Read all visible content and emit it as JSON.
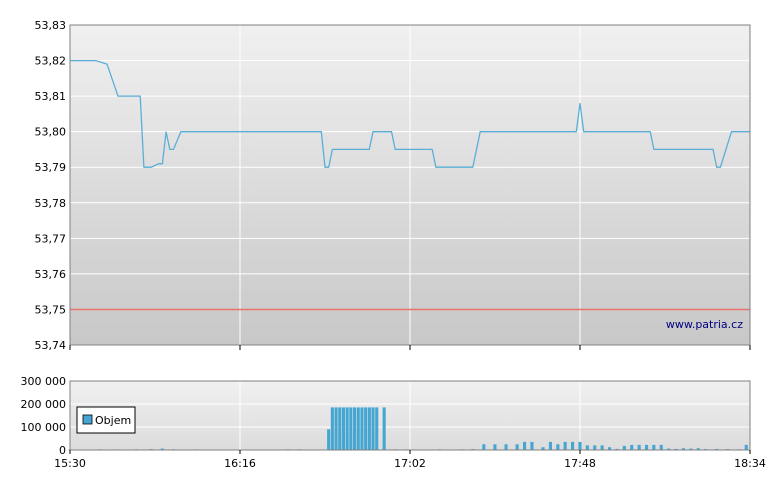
{
  "chart_data": [
    {
      "type": "line",
      "title": "",
      "xlabel": "",
      "ylabel": "",
      "x_ticks": [
        "15:30",
        "16:16",
        "17:02",
        "17:48",
        "18:34"
      ],
      "y_ticks": [
        "53,74",
        "53,75",
        "53,76",
        "53,77",
        "53,78",
        "53,79",
        "53,80",
        "53,81",
        "53,82",
        "53,83"
      ],
      "ylim": [
        53.74,
        53.83
      ],
      "xlim": [
        "15:30",
        "18:34"
      ],
      "grid": true,
      "reference_line": {
        "value": 53.75,
        "color": "#e8746c"
      },
      "series": [
        {
          "color": "#5aafd8",
          "points": [
            [
              "15:30",
              53.82
            ],
            [
              "15:37",
              53.82
            ],
            [
              "15:40",
              53.819
            ],
            [
              "15:43",
              53.81
            ],
            [
              "15:49",
              53.81
            ],
            [
              "15:50",
              53.79
            ],
            [
              "15:52",
              53.79
            ],
            [
              "15:54",
              53.791
            ],
            [
              "15:55",
              53.791
            ],
            [
              "15:56",
              53.8
            ],
            [
              "15:57",
              53.795
            ],
            [
              "15:58",
              53.795
            ],
            [
              "16:00",
              53.8
            ],
            [
              "16:38",
              53.8
            ],
            [
              "16:39",
              53.79
            ],
            [
              "16:40",
              53.79
            ],
            [
              "16:41",
              53.795
            ],
            [
              "16:51",
              53.795
            ],
            [
              "16:52",
              53.8
            ],
            [
              "16:57",
              53.8
            ],
            [
              "16:58",
              53.795
            ],
            [
              "17:08",
              53.795
            ],
            [
              "17:09",
              53.79
            ],
            [
              "17:19",
              53.79
            ],
            [
              "17:21",
              53.8
            ],
            [
              "17:30",
              53.8
            ],
            [
              "17:31",
              53.8
            ],
            [
              "17:47",
              53.8
            ],
            [
              "17:48",
              53.808
            ],
            [
              "17:49",
              53.8
            ],
            [
              "18:07",
              53.8
            ],
            [
              "18:08",
              53.795
            ],
            [
              "18:24",
              53.795
            ],
            [
              "18:25",
              53.79
            ],
            [
              "18:26",
              53.79
            ],
            [
              "18:29",
              53.8
            ],
            [
              "18:34",
              53.8
            ]
          ]
        }
      ]
    },
    {
      "type": "bar",
      "title": "",
      "xlabel": "",
      "ylabel": "",
      "y_ticks": [
        "0",
        "100 000",
        "200 000",
        "300 000"
      ],
      "ylim": [
        0,
        300000
      ],
      "grid": true,
      "legend": {
        "label": "Objem",
        "position": "left",
        "color": "#45a6d2"
      },
      "series": [
        {
          "name": "Objem",
          "color": "#45a6d2",
          "bars": [
            [
              "15:30",
              2000
            ],
            [
              "15:34",
              1500
            ],
            [
              "15:38",
              3000
            ],
            [
              "15:42",
              2500
            ],
            [
              "15:45",
              2000
            ],
            [
              "15:48",
              3000
            ],
            [
              "15:52",
              4000
            ],
            [
              "15:55",
              6000
            ],
            [
              "15:58",
              3000
            ],
            [
              "16:01",
              2000
            ],
            [
              "16:04",
              2500
            ],
            [
              "16:07",
              2000
            ],
            [
              "16:10",
              1500
            ],
            [
              "16:13",
              2000
            ],
            [
              "16:17",
              1500
            ],
            [
              "16:21",
              2000
            ],
            [
              "16:25",
              2000
            ],
            [
              "16:29",
              3000
            ],
            [
              "16:32",
              3000
            ],
            [
              "16:35",
              2000
            ],
            [
              "16:40",
              90000
            ],
            [
              "16:41",
              185000
            ],
            [
              "16:42",
              185000
            ],
            [
              "16:43",
              185000
            ],
            [
              "16:44",
              185000
            ],
            [
              "16:45",
              185000
            ],
            [
              "16:46",
              185000
            ],
            [
              "16:47",
              185000
            ],
            [
              "16:48",
              185000
            ],
            [
              "16:49",
              185000
            ],
            [
              "16:50",
              185000
            ],
            [
              "16:51",
              185000
            ],
            [
              "16:52",
              185000
            ],
            [
              "16:53",
              185000
            ],
            [
              "16:55",
              185000
            ],
            [
              "16:58",
              3000
            ],
            [
              "17:01",
              2500
            ],
            [
              "17:04",
              2000
            ],
            [
              "17:07",
              2000
            ],
            [
              "17:10",
              3000
            ],
            [
              "17:13",
              2000
            ],
            [
              "17:16",
              3000
            ],
            [
              "17:19",
              4000
            ],
            [
              "17:22",
              25000
            ],
            [
              "17:25",
              25000
            ],
            [
              "17:28",
              25000
            ],
            [
              "17:31",
              25000
            ],
            [
              "17:33",
              35000
            ],
            [
              "17:35",
              35000
            ],
            [
              "17:38",
              12000
            ],
            [
              "17:40",
              35000
            ],
            [
              "17:42",
              25000
            ],
            [
              "17:44",
              35000
            ],
            [
              "17:46",
              35000
            ],
            [
              "17:48",
              35000
            ],
            [
              "17:50",
              20000
            ],
            [
              "17:52",
              20000
            ],
            [
              "17:54",
              20000
            ],
            [
              "17:56",
              12000
            ],
            [
              "17:58",
              5000
            ],
            [
              "18:00",
              18000
            ],
            [
              "18:02",
              22000
            ],
            [
              "18:04",
              22000
            ],
            [
              "18:06",
              22000
            ],
            [
              "18:08",
              22000
            ],
            [
              "18:10",
              22000
            ],
            [
              "18:12",
              6000
            ],
            [
              "18:14",
              5000
            ],
            [
              "18:16",
              8000
            ],
            [
              "18:18",
              6000
            ],
            [
              "18:20",
              8000
            ],
            [
              "18:22",
              4000
            ],
            [
              "18:25",
              5000
            ],
            [
              "18:28",
              4000
            ],
            [
              "18:31",
              3000
            ],
            [
              "18:33",
              22000
            ]
          ]
        }
      ]
    }
  ],
  "watermark": "www.patria.cz"
}
